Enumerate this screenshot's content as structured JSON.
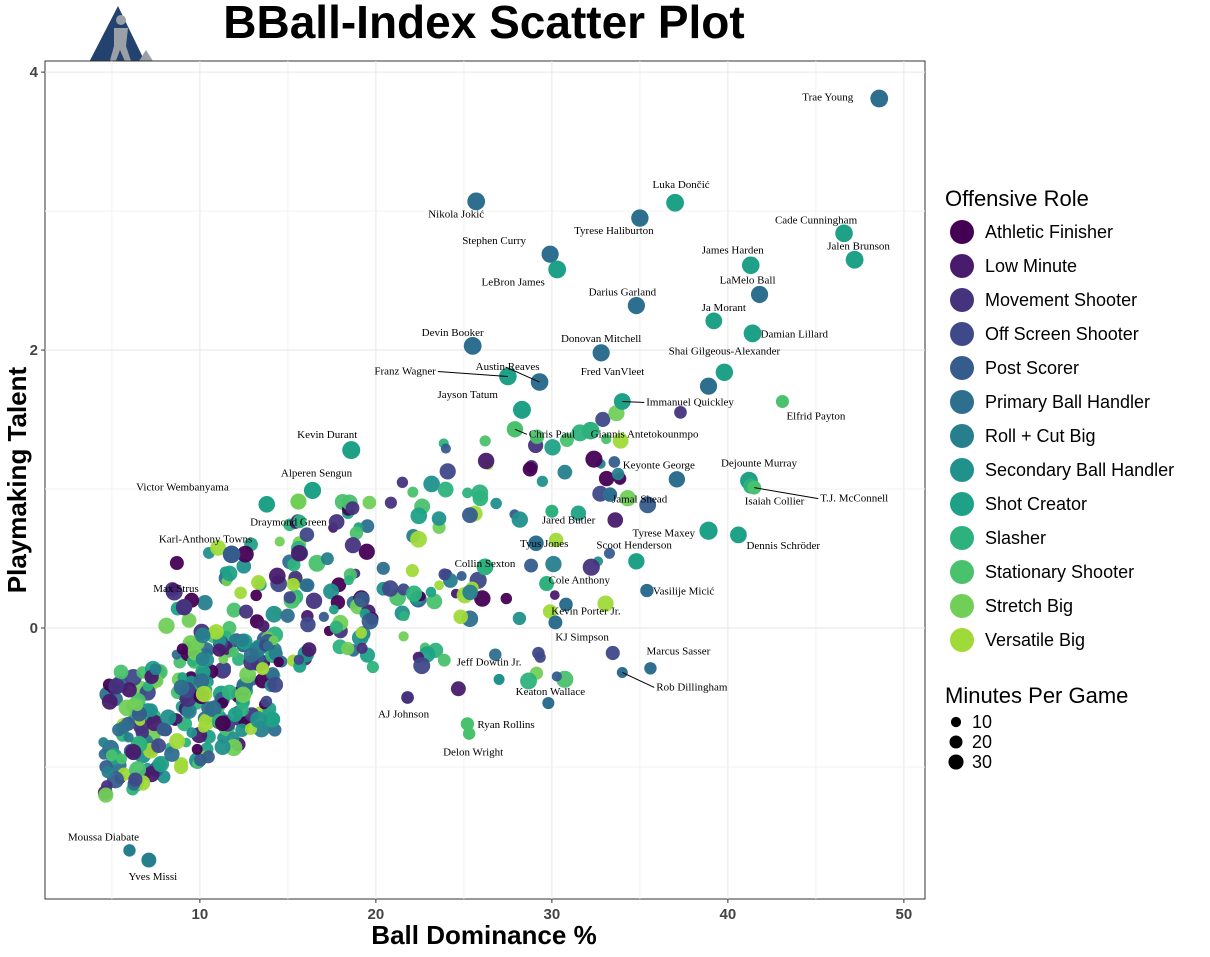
{
  "chart_data": {
    "type": "scatter",
    "title": "BBall-Index Scatter Plot",
    "xlabel": "Ball Dominance %",
    "ylabel": "Playmaking Talent",
    "xlim": [
      1.2,
      51.2
    ],
    "ylim": [
      -1.95,
      4.08
    ],
    "x_ticks": [
      10,
      20,
      30,
      40,
      50
    ],
    "y_ticks": [
      0,
      2,
      4
    ],
    "grid": true,
    "legend": {
      "placement": "right",
      "color_title": "Offensive Role",
      "size_title": "Minutes Per Game",
      "roles": [
        {
          "name": "Athletic Finisher",
          "color": "#440154"
        },
        {
          "name": "Low Minute",
          "color": "#481B6D"
        },
        {
          "name": "Movement Shooter",
          "color": "#46337E"
        },
        {
          "name": "Off Screen Shooter",
          "color": "#3F4889"
        },
        {
          "name": "Post Scorer",
          "color": "#365C8D"
        },
        {
          "name": "Primary Ball Handler",
          "color": "#2E6E8E"
        },
        {
          "name": "Roll + Cut Big",
          "color": "#277F8E"
        },
        {
          "name": "Secondary Ball Handler",
          "color": "#21918C"
        },
        {
          "name": "Shot Creator",
          "color": "#1FA187"
        },
        {
          "name": "Slasher",
          "color": "#2DB27D"
        },
        {
          "name": "Stationary Shooter",
          "color": "#4AC16D"
        },
        {
          "name": "Stretch Big",
          "color": "#71CF57"
        },
        {
          "name": "Versatile Big",
          "color": "#A0DA39"
        }
      ],
      "sizes": [
        {
          "label": "10",
          "value": 10
        },
        {
          "label": "20",
          "value": 20
        },
        {
          "label": "30",
          "value": 30
        }
      ]
    },
    "labeled_points": [
      {
        "name": "Trae Young",
        "x": 48.6,
        "y": 3.81,
        "role": "Primary Ball Handler",
        "mpg": 35
      },
      {
        "name": "Luka Dončić",
        "x": 37.0,
        "y": 3.06,
        "role": "Shot Creator",
        "mpg": 35
      },
      {
        "name": "Nikola Jokić",
        "x": 25.7,
        "y": 3.07,
        "role": "Primary Ball Handler",
        "mpg": 35
      },
      {
        "name": "Tyrese Haliburton",
        "x": 35.0,
        "y": 2.95,
        "role": "Primary Ball Handler",
        "mpg": 33
      },
      {
        "name": "Cade Cunningham",
        "x": 46.6,
        "y": 2.84,
        "role": "Shot Creator",
        "mpg": 34
      },
      {
        "name": "Jalen Brunson",
        "x": 47.2,
        "y": 2.65,
        "role": "Shot Creator",
        "mpg": 35
      },
      {
        "name": "Stephen Curry",
        "x": 29.9,
        "y": 2.69,
        "role": "Primary Ball Handler",
        "mpg": 32
      },
      {
        "name": "James Harden",
        "x": 41.3,
        "y": 2.61,
        "role": "Shot Creator",
        "mpg": 34
      },
      {
        "name": "LeBron James",
        "x": 30.3,
        "y": 2.58,
        "role": "Shot Creator",
        "mpg": 35
      },
      {
        "name": "LaMelo Ball",
        "x": 41.8,
        "y": 2.4,
        "role": "Primary Ball Handler",
        "mpg": 32
      },
      {
        "name": "Darius Garland",
        "x": 34.8,
        "y": 2.32,
        "role": "Primary Ball Handler",
        "mpg": 32
      },
      {
        "name": "Ja Morant",
        "x": 39.2,
        "y": 2.21,
        "role": "Shot Creator",
        "mpg": 30
      },
      {
        "name": "Damian Lillard",
        "x": 41.4,
        "y": 2.12,
        "role": "Shot Creator",
        "mpg": 35
      },
      {
        "name": "Devin Booker",
        "x": 25.5,
        "y": 2.03,
        "role": "Primary Ball Handler",
        "mpg": 35
      },
      {
        "name": "Donovan Mitchell",
        "x": 32.8,
        "y": 1.98,
        "role": "Primary Ball Handler",
        "mpg": 32
      },
      {
        "name": "Shai Gilgeous-Alexander",
        "x": 39.8,
        "y": 1.84,
        "role": "Shot Creator",
        "mpg": 33
      },
      {
        "name": "Franz Wagner",
        "x": 27.5,
        "y": 1.81,
        "role": "Shot Creator",
        "mpg": 34
      },
      {
        "name": "Austin Reaves",
        "x": 29.3,
        "y": 1.77,
        "role": "Primary Ball Handler",
        "mpg": 34
      },
      {
        "name": "Fred VanVleet",
        "x": 38.9,
        "y": 1.74,
        "role": "Primary Ball Handler",
        "mpg": 32
      },
      {
        "name": "Jayson Tatum",
        "x": 28.3,
        "y": 1.57,
        "role": "Shot Creator",
        "mpg": 36
      },
      {
        "name": "Immanuel Quickley",
        "x": 34.0,
        "y": 1.63,
        "role": "Shot Creator",
        "mpg": 30
      },
      {
        "name": "Elfrid Payton",
        "x": 43.1,
        "y": 1.63,
        "role": "Stationary Shooter",
        "mpg": 15
      },
      {
        "name": "Chris Paul",
        "x": 27.9,
        "y": 1.43,
        "role": "Stationary Shooter",
        "mpg": 28
      },
      {
        "name": "Giannis Antetokounmpo",
        "x": 32.2,
        "y": 1.42,
        "role": "Slasher",
        "mpg": 34
      },
      {
        "name": "Kevin Durant",
        "x": 18.6,
        "y": 1.28,
        "role": "Shot Creator",
        "mpg": 36
      },
      {
        "name": "Keyonte George",
        "x": 37.1,
        "y": 1.07,
        "role": "Primary Ball Handler",
        "mpg": 28
      },
      {
        "name": "Dejounte Murray",
        "x": 41.2,
        "y": 1.06,
        "role": "Shot Creator",
        "mpg": 35
      },
      {
        "name": "Isaiah Collier",
        "x": 41.3,
        "y": 1.02,
        "role": "Slasher",
        "mpg": 22
      },
      {
        "name": "T.J. McConnell",
        "x": 41.5,
        "y": 1.01,
        "role": "Stationary Shooter",
        "mpg": 18
      },
      {
        "name": "Alperen Sengun",
        "x": 16.4,
        "y": 0.99,
        "role": "Shot Creator",
        "mpg": 32
      },
      {
        "name": "Victor Wembanyama",
        "x": 13.8,
        "y": 0.89,
        "role": "Shot Creator",
        "mpg": 29
      },
      {
        "name": "Draymond Green",
        "x": 15.6,
        "y": 0.91,
        "role": "Stretch Big",
        "mpg": 27
      },
      {
        "name": "Jamal Shead",
        "x": 33.3,
        "y": 0.96,
        "role": "Primary Ball Handler",
        "mpg": 20
      },
      {
        "name": "Jared Butler",
        "x": 30.0,
        "y": 0.84,
        "role": "Slasher",
        "mpg": 15
      },
      {
        "name": "Tyrese Maxey",
        "x": 38.9,
        "y": 0.7,
        "role": "Shot Creator",
        "mpg": 37
      },
      {
        "name": "Dennis Schröder",
        "x": 40.6,
        "y": 0.67,
        "role": "Shot Creator",
        "mpg": 30
      },
      {
        "name": "Karl-Anthony Towns",
        "x": 11.8,
        "y": 0.53,
        "role": "Post Scorer",
        "mpg": 34
      },
      {
        "name": "Tyus Jones",
        "x": 29.1,
        "y": 0.61,
        "role": "Primary Ball Handler",
        "mpg": 24
      },
      {
        "name": "Scoot Henderson",
        "x": 34.8,
        "y": 0.48,
        "role": "Shot Creator",
        "mpg": 28
      },
      {
        "name": "Max Strus",
        "x": 9.1,
        "y": 0.15,
        "role": "Movement Shooter",
        "mpg": 28
      },
      {
        "name": "Collin Sexton",
        "x": 26.2,
        "y": 0.44,
        "role": "Slasher",
        "mpg": 30
      },
      {
        "name": "Cole Anthony",
        "x": 29.7,
        "y": 0.32,
        "role": "Slasher",
        "mpg": 22
      },
      {
        "name": "Vasilije Micić",
        "x": 35.4,
        "y": 0.27,
        "role": "Primary Ball Handler",
        "mpg": 16
      },
      {
        "name": "Kevin Porter Jr.",
        "x": 30.8,
        "y": 0.17,
        "role": "Primary Ball Handler",
        "mpg": 17
      },
      {
        "name": "KJ Simpson",
        "x": 30.2,
        "y": 0.04,
        "role": "Primary Ball Handler",
        "mpg": 18
      },
      {
        "name": "Marcus Sasser",
        "x": 35.6,
        "y": -0.29,
        "role": "Primary Ball Handler",
        "mpg": 13
      },
      {
        "name": "Rob Dillingham",
        "x": 34.0,
        "y": -0.32,
        "role": "Primary Ball Handler",
        "mpg": 9
      },
      {
        "name": "Jeff Dowtin Jr.",
        "x": 27.0,
        "y": -0.37,
        "role": "Secondary Ball Handler",
        "mpg": 9
      },
      {
        "name": "Keaton Wallace",
        "x": 29.8,
        "y": -0.54,
        "role": "Primary Ball Handler",
        "mpg": 12
      },
      {
        "name": "AJ Johnson",
        "x": 21.8,
        "y": -0.5,
        "role": "Movement Shooter",
        "mpg": 14
      },
      {
        "name": "Ryan Rollins",
        "x": 25.2,
        "y": -0.69,
        "role": "Stationary Shooter",
        "mpg": 16
      },
      {
        "name": "Delon Wright",
        "x": 25.3,
        "y": -0.76,
        "role": "Stationary Shooter",
        "mpg": 13
      },
      {
        "name": "Moussa Diabate",
        "x": 6.0,
        "y": -1.6,
        "role": "Roll + Cut Big",
        "mpg": 13
      },
      {
        "name": "Yves Missi",
        "x": 7.1,
        "y": -1.67,
        "role": "Roll + Cut Big",
        "mpg": 22
      }
    ]
  }
}
